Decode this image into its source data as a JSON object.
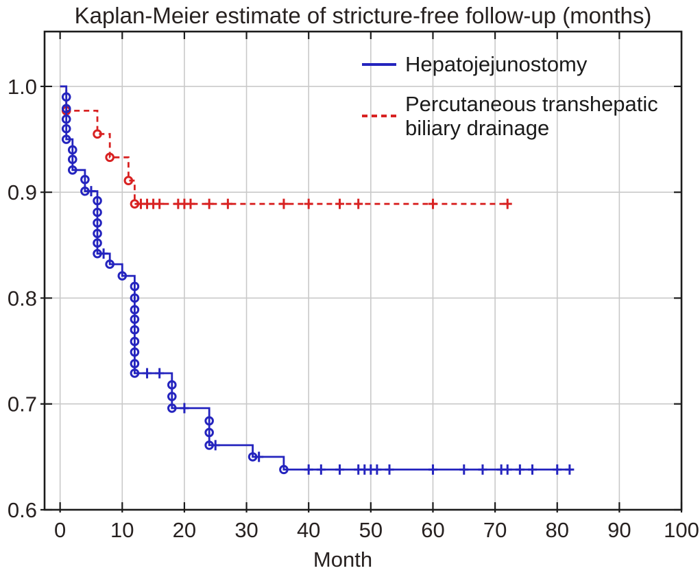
{
  "chart_data": {
    "type": "line",
    "subtype": "kaplan_meier_step",
    "title": "Kaplan-Meier estimate of stricture-free follow-up (months)",
    "xlabel": "Month",
    "ylabel": "",
    "xlim": [
      -2.5,
      100
    ],
    "ylim": [
      0.6,
      1.0518
    ],
    "xticks": [
      0,
      10,
      20,
      30,
      40,
      50,
      60,
      70,
      80,
      90,
      100
    ],
    "xtick_labels": [
      "0",
      "10",
      "20",
      "30",
      "40",
      "50",
      "60",
      "70",
      "80",
      "90",
      "100"
    ],
    "yticks": [
      0.6,
      0.7,
      0.8,
      0.9,
      1.0
    ],
    "ytick_labels": [
      "0.6",
      "0.7",
      "0.8",
      "0.9",
      "1.0"
    ],
    "grid": true,
    "legend_position": "inside-top-right",
    "colors": {
      "axis": "#1b1b1b",
      "grid": "#c9c9c9",
      "background": "#ffffff",
      "text": "#272120"
    },
    "series": [
      {
        "name": "Percutaneous transhepatic biliary drainage",
        "color": "#d82222",
        "line_style": "dashed",
        "marker": "open-circle",
        "censor_marker": "plus",
        "start": [
          0,
          1.0
        ],
        "end_time": 72,
        "events": [
          [
            1,
            0.977
          ],
          [
            6,
            0.955
          ],
          [
            8,
            0.933
          ],
          [
            11,
            0.911
          ],
          [
            12,
            0.889
          ]
        ],
        "censored": [
          [
            13,
            0.889
          ],
          [
            14,
            0.889
          ],
          [
            15,
            0.889
          ],
          [
            16,
            0.889
          ],
          [
            19,
            0.889
          ],
          [
            20,
            0.889
          ],
          [
            21,
            0.889
          ],
          [
            24,
            0.889
          ],
          [
            27,
            0.889
          ],
          [
            36,
            0.889
          ],
          [
            40,
            0.889
          ],
          [
            45,
            0.889
          ],
          [
            48,
            0.889
          ],
          [
            60,
            0.889
          ],
          [
            72,
            0.889
          ]
        ]
      },
      {
        "name": "Hepatojejunostomy",
        "color": "#2424be",
        "line_style": "solid",
        "marker": "open-circle",
        "censor_marker": "plus",
        "start": [
          0,
          1.0
        ],
        "end_time": 82.5,
        "events": [
          [
            1,
            0.99
          ],
          [
            1,
            0.979
          ],
          [
            1,
            0.969
          ],
          [
            1,
            0.96
          ],
          [
            1,
            0.95
          ],
          [
            2,
            0.94
          ],
          [
            2,
            0.931
          ],
          [
            2,
            0.921
          ],
          [
            4,
            0.912
          ],
          [
            4,
            0.901
          ],
          [
            6,
            0.892
          ],
          [
            6,
            0.881
          ],
          [
            6,
            0.871
          ],
          [
            6,
            0.861
          ],
          [
            6,
            0.852
          ],
          [
            6,
            0.842
          ],
          [
            8,
            0.832
          ],
          [
            10,
            0.821
          ],
          [
            12,
            0.811
          ],
          [
            12,
            0.8
          ],
          [
            12,
            0.789
          ],
          [
            12,
            0.78
          ],
          [
            12,
            0.77
          ],
          [
            12,
            0.759
          ],
          [
            12,
            0.749
          ],
          [
            12,
            0.738
          ],
          [
            12,
            0.729
          ],
          [
            18,
            0.718
          ],
          [
            18,
            0.707
          ],
          [
            18,
            0.696
          ],
          [
            24,
            0.684
          ],
          [
            24,
            0.673
          ],
          [
            24,
            0.661
          ],
          [
            31,
            0.65
          ],
          [
            36,
            0.638
          ]
        ],
        "censored": [
          [
            5,
            0.901
          ],
          [
            7,
            0.842
          ],
          [
            14,
            0.729
          ],
          [
            16,
            0.729
          ],
          [
            20,
            0.696
          ],
          [
            25,
            0.661
          ],
          [
            32,
            0.65
          ],
          [
            40,
            0.638
          ],
          [
            42,
            0.638
          ],
          [
            45,
            0.638
          ],
          [
            48,
            0.638
          ],
          [
            49,
            0.638
          ],
          [
            50,
            0.638
          ],
          [
            51,
            0.638
          ],
          [
            53,
            0.638
          ],
          [
            60,
            0.638
          ],
          [
            65,
            0.638
          ],
          [
            68,
            0.638
          ],
          [
            71,
            0.638
          ],
          [
            72,
            0.638
          ],
          [
            74,
            0.638
          ],
          [
            76,
            0.638
          ],
          [
            80,
            0.638
          ],
          [
            82,
            0.638
          ]
        ]
      }
    ]
  }
}
